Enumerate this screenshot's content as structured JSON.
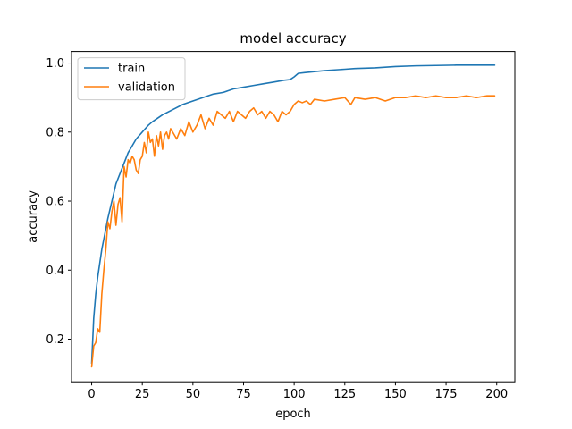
{
  "chart_data": {
    "type": "line",
    "title": "model accuracy",
    "xlabel": "epoch",
    "ylabel": "accuracy",
    "xlim": [
      -9.95,
      208.95
    ],
    "ylim": [
      0.0765,
      1.0335
    ],
    "xticks": [
      0,
      25,
      50,
      75,
      100,
      125,
      150,
      175,
      200
    ],
    "yticks": [
      0.2,
      0.4,
      0.6,
      0.8,
      1.0
    ],
    "xtick_labels": [
      "0",
      "25",
      "50",
      "75",
      "100",
      "125",
      "150",
      "175",
      "200"
    ],
    "ytick_labels": [
      "0.2",
      "0.4",
      "0.6",
      "0.8",
      "1.0"
    ],
    "legend": {
      "position": "upper-left",
      "entries": [
        "train",
        "validation"
      ]
    },
    "series": [
      {
        "name": "train",
        "color": "#1f77b4",
        "x": [
          0,
          1,
          2,
          3,
          4,
          5,
          6,
          8,
          10,
          12,
          14,
          16,
          18,
          20,
          22,
          25,
          28,
          30,
          35,
          40,
          45,
          50,
          55,
          60,
          65,
          70,
          75,
          80,
          85,
          90,
          95,
          98,
          100,
          102,
          105,
          110,
          115,
          120,
          125,
          130,
          140,
          150,
          160,
          170,
          180,
          190,
          199
        ],
        "values": [
          0.13,
          0.26,
          0.33,
          0.38,
          0.42,
          0.46,
          0.49,
          0.55,
          0.6,
          0.65,
          0.68,
          0.71,
          0.74,
          0.76,
          0.78,
          0.8,
          0.82,
          0.83,
          0.85,
          0.865,
          0.88,
          0.89,
          0.9,
          0.91,
          0.915,
          0.925,
          0.93,
          0.935,
          0.94,
          0.945,
          0.95,
          0.952,
          0.96,
          0.97,
          0.972,
          0.975,
          0.978,
          0.98,
          0.982,
          0.984,
          0.986,
          0.99,
          0.992,
          0.993,
          0.994,
          0.994,
          0.994
        ]
      },
      {
        "name": "validation",
        "color": "#ff7f0e",
        "x": [
          0,
          1,
          2,
          3,
          4,
          5,
          6,
          7,
          8,
          9,
          10,
          11,
          12,
          13,
          14,
          15,
          16,
          17,
          18,
          19,
          20,
          21,
          22,
          23,
          24,
          25,
          26,
          27,
          28,
          29,
          30,
          31,
          32,
          33,
          34,
          35,
          36,
          37,
          38,
          39,
          40,
          42,
          44,
          46,
          48,
          50,
          52,
          54,
          56,
          58,
          60,
          62,
          64,
          66,
          68,
          70,
          72,
          74,
          76,
          78,
          80,
          82,
          84,
          86,
          88,
          90,
          92,
          94,
          96,
          98,
          100,
          102,
          104,
          106,
          108,
          110,
          115,
          120,
          125,
          128,
          130,
          135,
          140,
          145,
          150,
          155,
          160,
          165,
          170,
          175,
          180,
          185,
          190,
          195,
          199
        ],
        "values": [
          0.12,
          0.18,
          0.19,
          0.23,
          0.22,
          0.33,
          0.4,
          0.46,
          0.54,
          0.52,
          0.57,
          0.6,
          0.53,
          0.59,
          0.61,
          0.54,
          0.7,
          0.67,
          0.72,
          0.71,
          0.73,
          0.72,
          0.69,
          0.68,
          0.72,
          0.73,
          0.77,
          0.74,
          0.8,
          0.77,
          0.78,
          0.73,
          0.79,
          0.76,
          0.8,
          0.75,
          0.79,
          0.8,
          0.78,
          0.81,
          0.8,
          0.78,
          0.81,
          0.79,
          0.83,
          0.8,
          0.82,
          0.85,
          0.81,
          0.84,
          0.82,
          0.86,
          0.85,
          0.84,
          0.86,
          0.83,
          0.86,
          0.85,
          0.84,
          0.86,
          0.87,
          0.85,
          0.86,
          0.84,
          0.86,
          0.85,
          0.83,
          0.86,
          0.85,
          0.86,
          0.88,
          0.89,
          0.885,
          0.89,
          0.88,
          0.895,
          0.89,
          0.895,
          0.9,
          0.88,
          0.9,
          0.895,
          0.9,
          0.89,
          0.9,
          0.9,
          0.905,
          0.9,
          0.905,
          0.9,
          0.9,
          0.905,
          0.9,
          0.905,
          0.905
        ]
      }
    ]
  }
}
